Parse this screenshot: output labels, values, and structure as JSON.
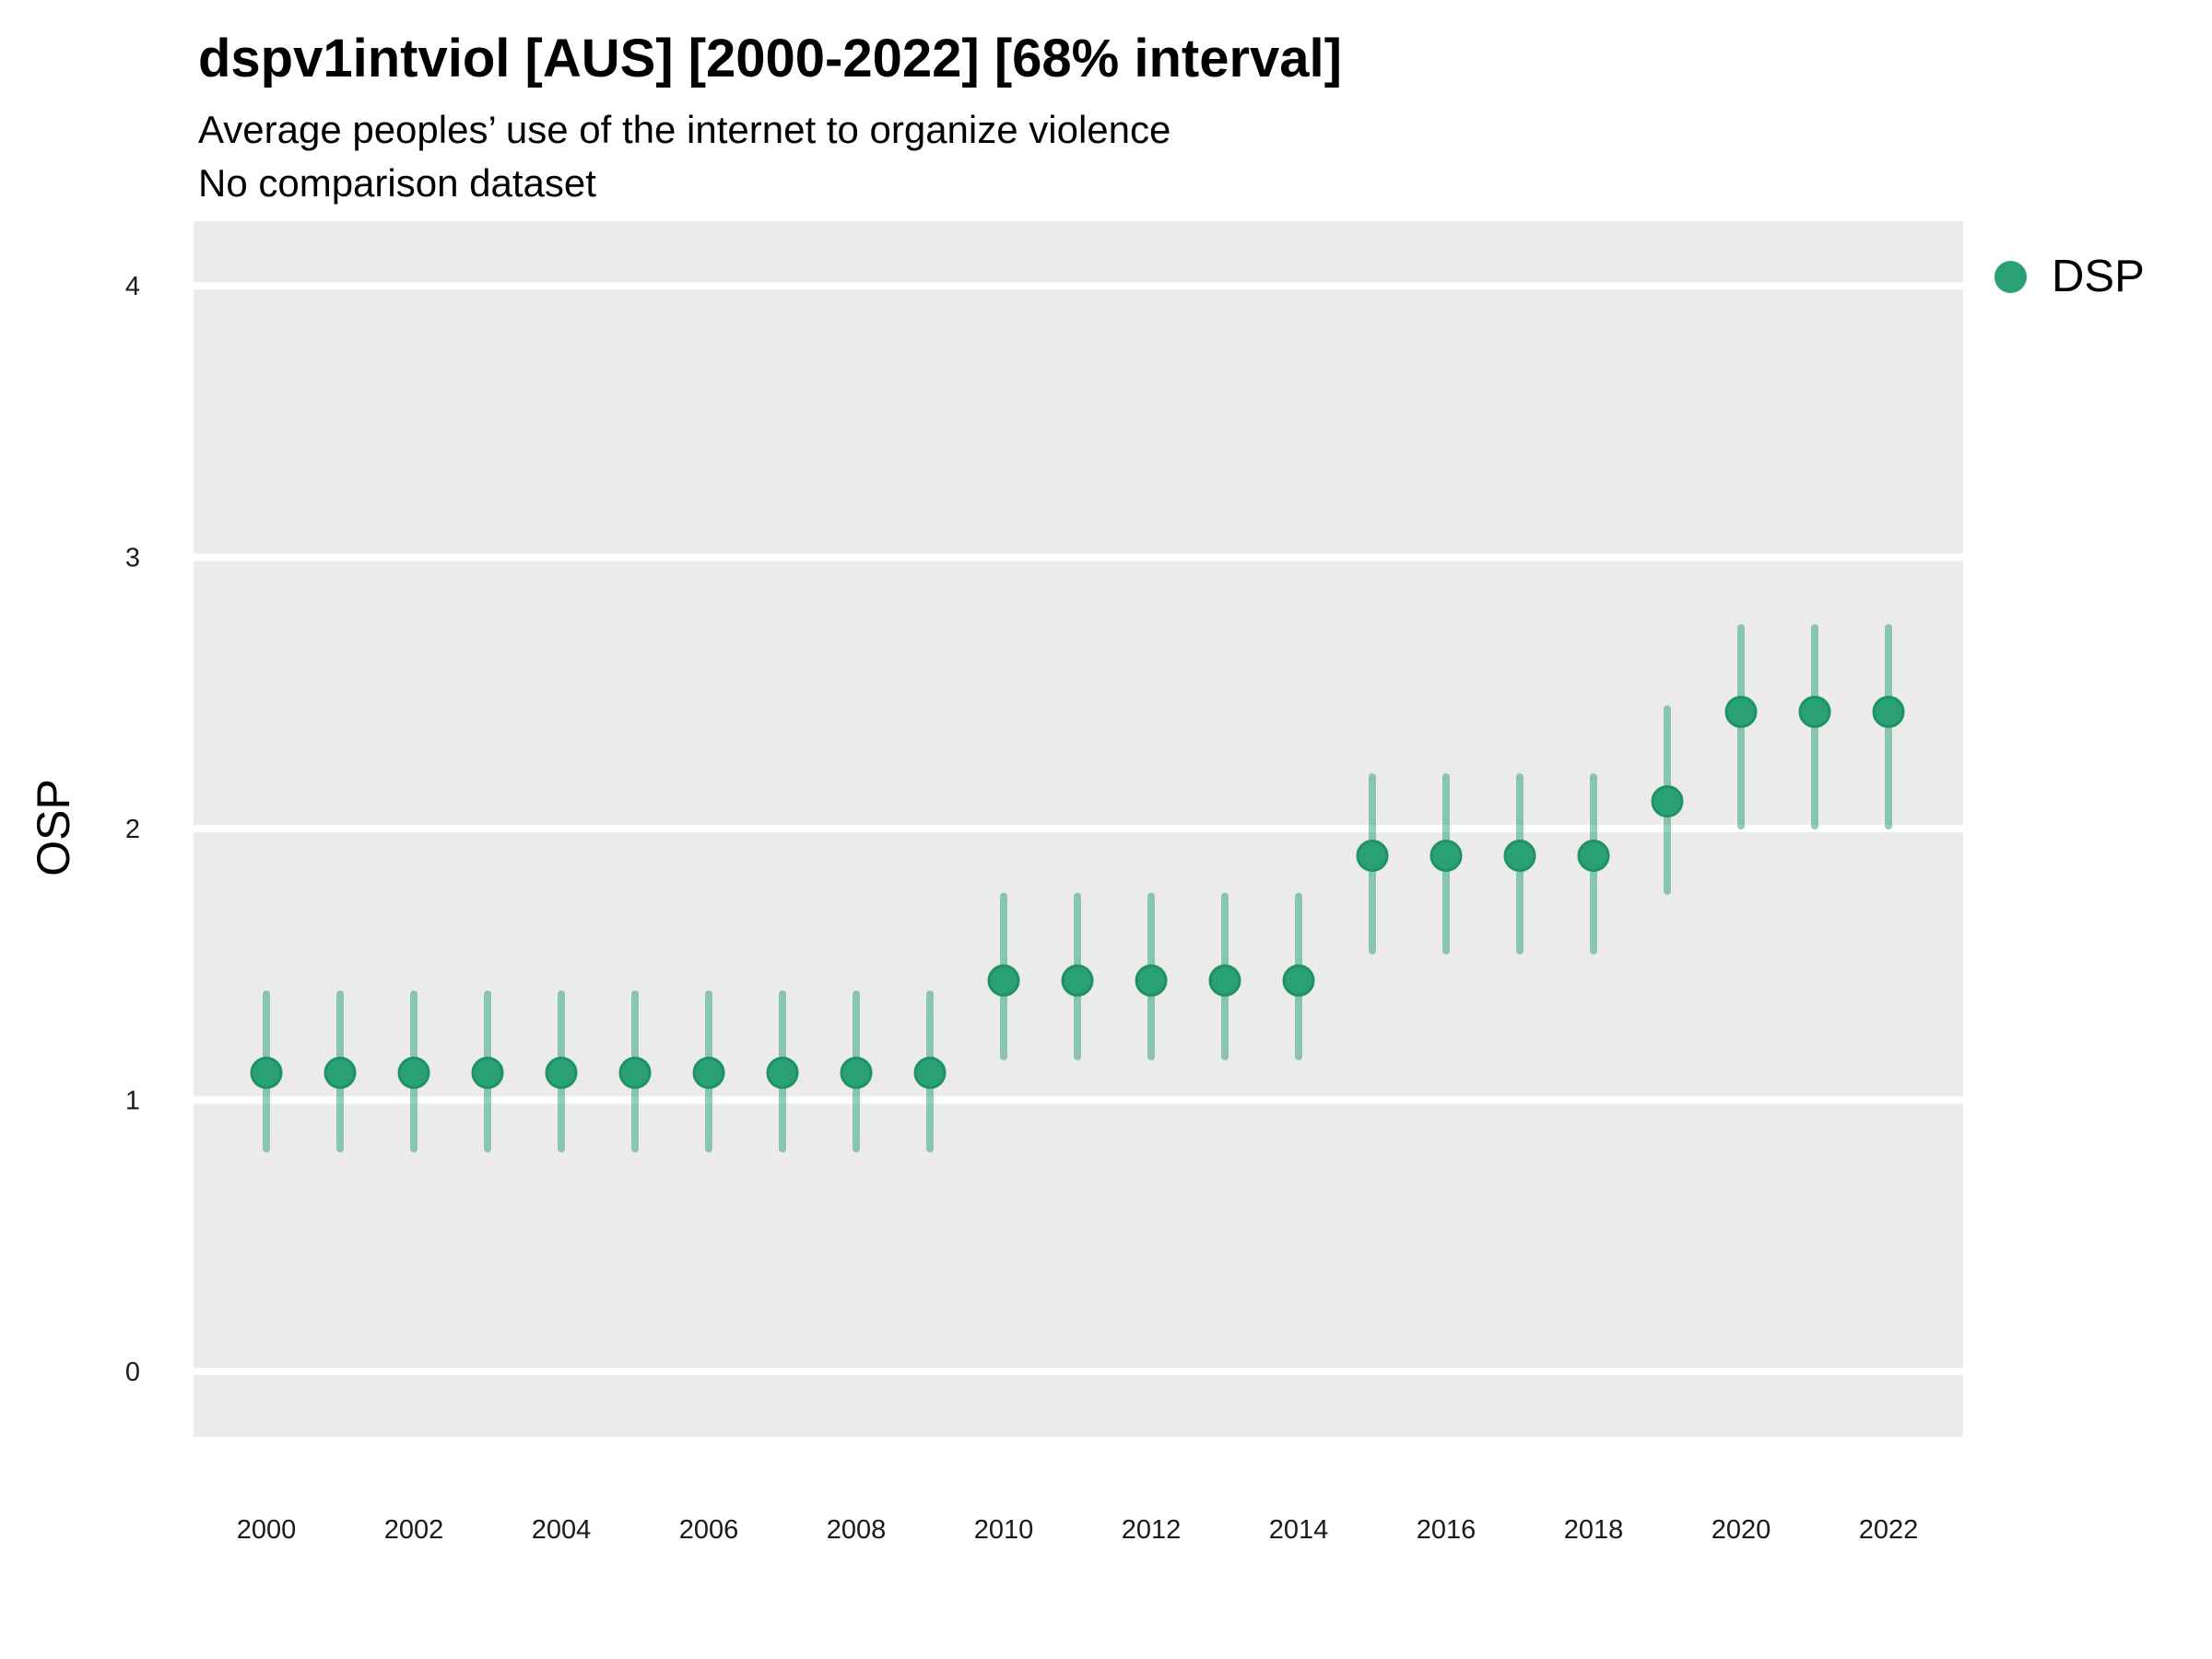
{
  "header": {
    "title": "dspv1intviol [AUS] [2000-2022] [68% interval]",
    "subtitle": "Average peoples’ use of the internet to organize violence",
    "note": "No comparison dataset"
  },
  "legend": {
    "label": "DSP"
  },
  "axes": {
    "y_label": "OSP",
    "y_tick_labels": [
      "0",
      "1",
      "2",
      "3",
      "4"
    ],
    "x_tick_labels": [
      "2000",
      "2002",
      "2004",
      "2006",
      "2008",
      "2010",
      "2012",
      "2014",
      "2016",
      "2018",
      "2020",
      "2022"
    ]
  },
  "colors": {
    "point": "#2AA173",
    "point_border": "#1E9362",
    "interval": "#2AA173",
    "panel": "#EBEBEB",
    "gridline": "#FFFFFF",
    "tick_text": "#1A1A1A"
  },
  "chart_data": {
    "type": "scatter",
    "title": "dspv1intviol [AUS] [2000-2022] [68% interval]",
    "subtitle": "Average peoples’ use of the internet to organize violence",
    "note": "No comparison dataset",
    "xlabel": "",
    "ylabel": "OSP",
    "ylim": [
      0,
      4
    ],
    "y_ticks": [
      0,
      1,
      2,
      3,
      4
    ],
    "x_ticks": [
      2000,
      2002,
      2004,
      2006,
      2008,
      2010,
      2012,
      2014,
      2016,
      2018,
      2020,
      2022
    ],
    "interval_level": "68%",
    "grid": "horizontal-major-only",
    "legend_position": "right",
    "series": [
      {
        "name": "DSP",
        "x": [
          2000,
          2001,
          2002,
          2003,
          2004,
          2005,
          2006,
          2007,
          2008,
          2009,
          2010,
          2011,
          2012,
          2013,
          2014,
          2015,
          2016,
          2017,
          2018,
          2019,
          2020,
          2021,
          2022
        ],
        "y": [
          1.1,
          1.1,
          1.1,
          1.1,
          1.1,
          1.1,
          1.1,
          1.1,
          1.1,
          1.1,
          1.44,
          1.44,
          1.44,
          1.44,
          1.44,
          1.9,
          1.9,
          1.9,
          1.9,
          2.1,
          2.43,
          2.43,
          2.43
        ],
        "lo": [
          0.82,
          0.82,
          0.82,
          0.82,
          0.82,
          0.82,
          0.82,
          0.82,
          0.82,
          0.82,
          1.16,
          1.16,
          1.16,
          1.16,
          1.16,
          1.55,
          1.55,
          1.55,
          1.55,
          1.77,
          2.01,
          2.01,
          2.01
        ],
        "hi": [
          1.39,
          1.39,
          1.39,
          1.39,
          1.39,
          1.39,
          1.39,
          1.39,
          1.39,
          1.39,
          1.75,
          1.75,
          1.75,
          1.75,
          1.75,
          2.19,
          2.19,
          2.19,
          2.19,
          2.44,
          2.74,
          2.74,
          2.74
        ]
      }
    ]
  }
}
